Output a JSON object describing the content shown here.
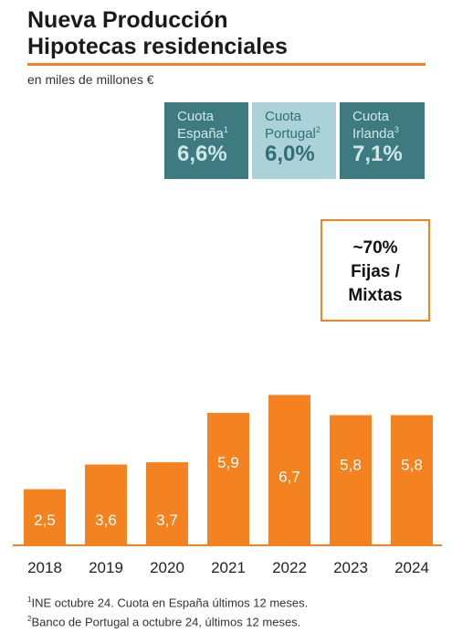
{
  "header": {
    "title_line1": "Nueva Producción",
    "title_line2": "Hipotecas residenciales",
    "subtitle": "en miles de millones €"
  },
  "quotas": [
    {
      "label1": "Cuota",
      "label2": "España",
      "sup": "1",
      "value": "6,6%"
    },
    {
      "label1": "Cuota",
      "label2": "Portugal",
      "sup": "2",
      "value": "6,0%"
    },
    {
      "label1": "Cuota",
      "label2": "Irlanda",
      "sup": "3",
      "value": "7,1%"
    }
  ],
  "callout": {
    "line1": "~70%",
    "line2": "Fijas /",
    "line3": "Mixtas"
  },
  "colors": {
    "accent": "#f58220",
    "teal_dark": "#3d7b80",
    "teal_light": "#aad2d8"
  },
  "chart_data": {
    "type": "bar",
    "title": "Nueva Producción Hipotecas residenciales",
    "ylabel": "en miles de millones €",
    "categories": [
      "2018",
      "2019",
      "2020",
      "2021",
      "2022",
      "2023",
      "2024"
    ],
    "values": [
      2.5,
      3.6,
      3.7,
      5.9,
      6.7,
      5.8,
      5.8
    ],
    "labels": [
      "2,5",
      "3,6",
      "3,7",
      "5,9",
      "6,7",
      "5,8",
      "5,8"
    ],
    "ylim": [
      0,
      7
    ],
    "grid": false,
    "legend": "none"
  },
  "footnotes": [
    {
      "sup": "1",
      "text": "INE  octubre 24. Cuota en España últimos 12 meses."
    },
    {
      "sup": "2",
      "text": "Banco de Portugal a octubre 24, últimos 12 meses."
    }
  ]
}
